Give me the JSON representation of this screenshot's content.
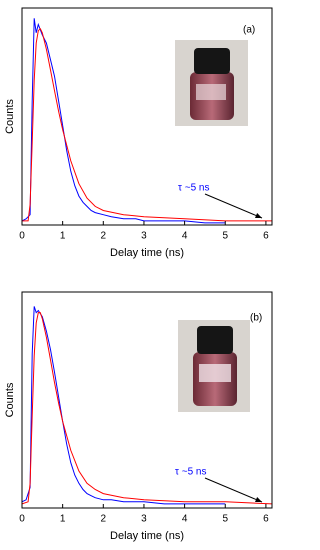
{
  "chart_data": [
    {
      "type": "line",
      "xlabel": "Delay time (ns)",
      "ylabel": "Counts",
      "annotations": [
        "(a)",
        "τ ~5 ns"
      ],
      "xlim": [
        0,
        6.15
      ],
      "ylim": [
        0,
        1.05
      ],
      "xticks": [
        0,
        1,
        2,
        3,
        4,
        5,
        6
      ],
      "series": [
        {
          "color": "#0000ff",
          "x": [
            0,
            0.1,
            0.2,
            0.25,
            0.3,
            0.35,
            0.4,
            0.5,
            0.6,
            0.7,
            0.8,
            0.9,
            1.0,
            1.1,
            1.2,
            1.3,
            1.4,
            1.5,
            1.6,
            1.7,
            1.8,
            2.0,
            2.2,
            2.5,
            2.8,
            3.0,
            3.5,
            4.0,
            4.5,
            5.0
          ],
          "values": [
            0.02,
            0.03,
            0.05,
            0.6,
            1.0,
            0.93,
            0.97,
            0.92,
            0.88,
            0.8,
            0.72,
            0.6,
            0.48,
            0.36,
            0.26,
            0.19,
            0.14,
            0.11,
            0.09,
            0.07,
            0.06,
            0.05,
            0.04,
            0.03,
            0.03,
            0.02,
            0.02,
            0.02,
            0.01,
            0.01
          ]
        },
        {
          "color": "#ff0000",
          "x": [
            0,
            0.15,
            0.2,
            0.25,
            0.3,
            0.35,
            0.4,
            0.45,
            0.5,
            0.6,
            0.7,
            0.8,
            0.9,
            1.0,
            1.2,
            1.4,
            1.6,
            1.8,
            2.0,
            2.5,
            3,
            4,
            5,
            6.15
          ],
          "values": [
            0.02,
            0.02,
            0.1,
            0.4,
            0.7,
            0.88,
            0.94,
            0.95,
            0.93,
            0.85,
            0.75,
            0.65,
            0.55,
            0.46,
            0.31,
            0.2,
            0.13,
            0.09,
            0.07,
            0.05,
            0.04,
            0.03,
            0.02,
            0.02
          ]
        }
      ]
    },
    {
      "type": "line",
      "xlabel": "Delay time (ns)",
      "ylabel": "Counts",
      "annotations": [
        "(b)",
        "τ ~5 ns"
      ],
      "xlim": [
        0,
        6.15
      ],
      "ylim": [
        0,
        1.05
      ],
      "xticks": [
        0,
        1,
        2,
        3,
        4,
        5,
        6
      ],
      "series": [
        {
          "color": "#0000ff",
          "x": [
            0,
            0.1,
            0.2,
            0.25,
            0.3,
            0.35,
            0.4,
            0.5,
            0.6,
            0.7,
            0.8,
            0.9,
            1.0,
            1.1,
            1.2,
            1.3,
            1.4,
            1.5,
            1.6,
            1.7,
            1.8,
            2.0,
            2.2,
            2.5,
            2.8,
            3.0,
            3.5,
            4.0,
            4.5,
            5.0
          ],
          "values": [
            0.03,
            0.04,
            0.1,
            0.75,
            0.98,
            0.95,
            0.96,
            0.93,
            0.86,
            0.77,
            0.66,
            0.54,
            0.42,
            0.31,
            0.22,
            0.16,
            0.12,
            0.09,
            0.07,
            0.06,
            0.05,
            0.04,
            0.04,
            0.03,
            0.03,
            0.03,
            0.02,
            0.02,
            0.02,
            0.02
          ]
        },
        {
          "color": "#ff0000",
          "x": [
            0,
            0.15,
            0.2,
            0.25,
            0.3,
            0.35,
            0.4,
            0.45,
            0.5,
            0.6,
            0.7,
            0.8,
            0.9,
            1.0,
            1.2,
            1.4,
            1.6,
            1.8,
            2.0,
            2.5,
            3,
            4,
            5,
            6.15
          ],
          "values": [
            0.02,
            0.03,
            0.12,
            0.45,
            0.74,
            0.9,
            0.95,
            0.95,
            0.92,
            0.83,
            0.72,
            0.61,
            0.51,
            0.42,
            0.28,
            0.18,
            0.12,
            0.09,
            0.07,
            0.05,
            0.04,
            0.03,
            0.03,
            0.02
          ]
        }
      ]
    }
  ]
}
